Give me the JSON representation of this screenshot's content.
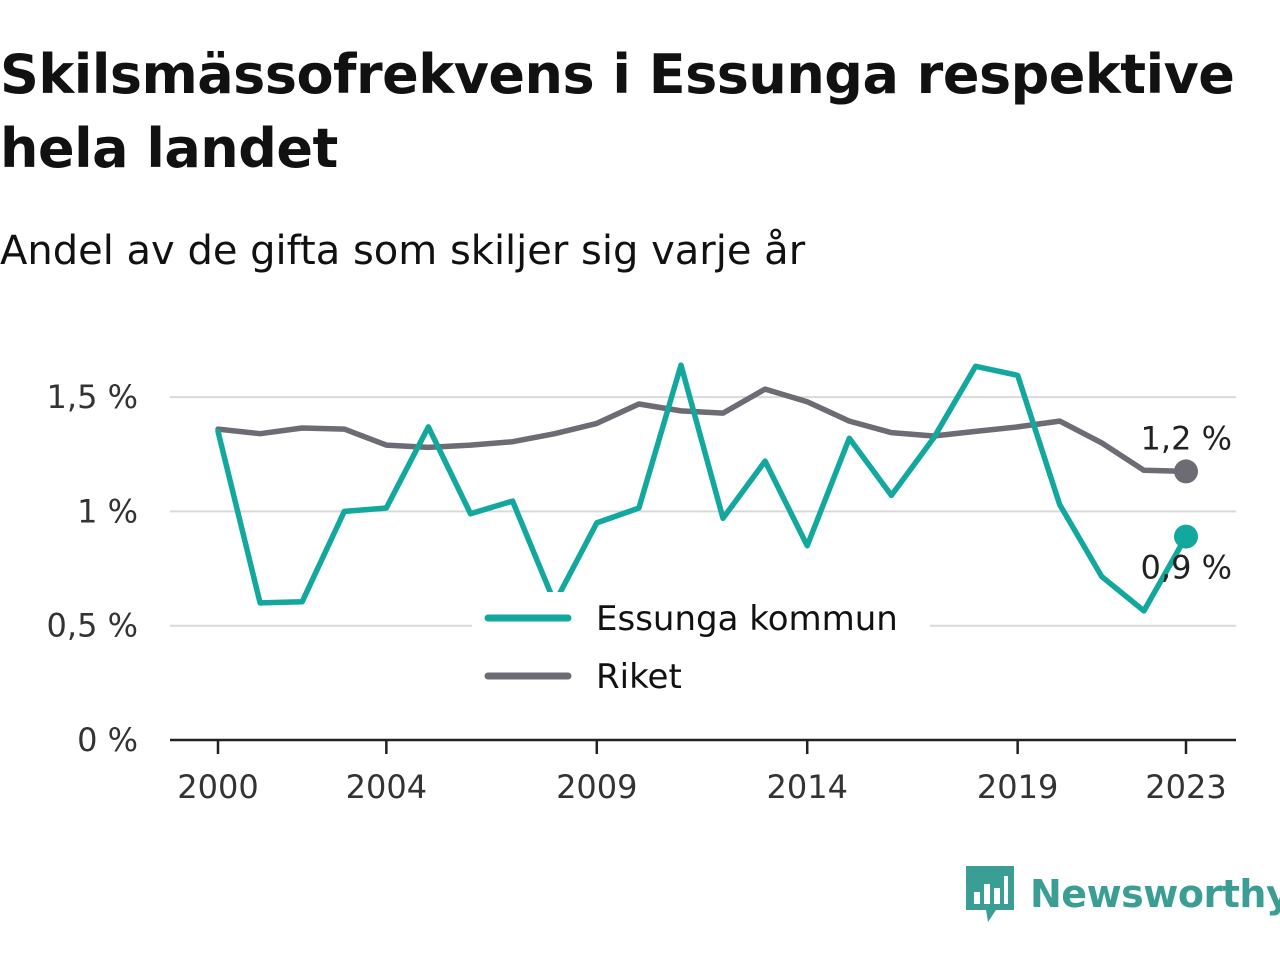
{
  "title": "Skilsmässofrekvens i Essunga respektive hela landet",
  "subtitle": "Andel av de gifta som skiljer sig varje år",
  "brand": {
    "name": "Newsworthy",
    "icon": "newsworthy-logo-icon",
    "color": "#3a9e94"
  },
  "chart_data": {
    "type": "line",
    "x": [
      2000,
      2001,
      2002,
      2003,
      2004,
      2005,
      2006,
      2007,
      2008,
      2009,
      2010,
      2011,
      2012,
      2013,
      2014,
      2015,
      2016,
      2017,
      2018,
      2019,
      2020,
      2021,
      2022,
      2023
    ],
    "x_ticks": [
      2000,
      2004,
      2009,
      2014,
      2019,
      2023
    ],
    "x_tick_labels": [
      "2000",
      "2004",
      "2009",
      "2014",
      "2019",
      "2023"
    ],
    "y_ticks": [
      0,
      0.5,
      1,
      1.5
    ],
    "y_tick_labels": [
      "0 %",
      "0,5 %",
      "1 %",
      "1,5 %"
    ],
    "ylim": [
      0,
      1.75
    ],
    "unit": "%",
    "grid": "horizontal",
    "legend_position": "bottom-center",
    "series": [
      {
        "name": "Essunga kommun",
        "color": "#13a89e",
        "values": [
          1.35,
          0.6,
          0.605,
          1.0,
          1.015,
          1.37,
          0.99,
          1.045,
          0.6,
          0.95,
          1.015,
          1.64,
          0.97,
          1.22,
          0.85,
          1.32,
          1.07,
          1.32,
          1.635,
          1.595,
          1.03,
          0.715,
          0.565,
          0.89
        ],
        "end_label": "0,9 %"
      },
      {
        "name": "Riket",
        "color": "#6d6b73",
        "values": [
          1.36,
          1.34,
          1.365,
          1.36,
          1.29,
          1.28,
          1.29,
          1.305,
          1.34,
          1.385,
          1.47,
          1.44,
          1.43,
          1.535,
          1.48,
          1.395,
          1.345,
          1.33,
          1.35,
          1.37,
          1.395,
          1.3,
          1.18,
          1.175
        ],
        "end_label": "1,2 %"
      }
    ]
  }
}
